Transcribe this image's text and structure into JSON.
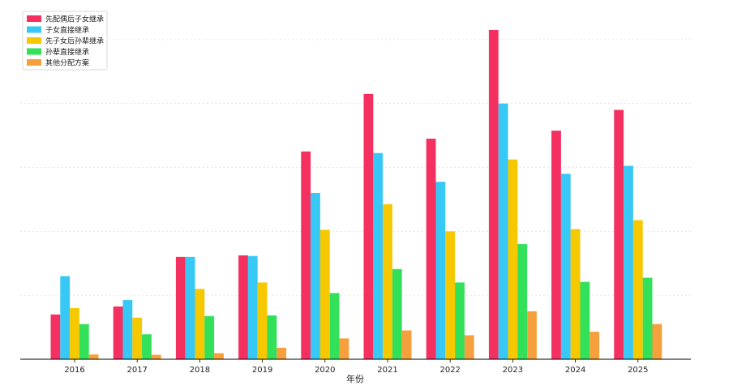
{
  "chart_data": {
    "type": "bar",
    "title": "",
    "xlabel": "年份",
    "ylabel": "",
    "categories": [
      "2016",
      "2017",
      "2018",
      "2019",
      "2020",
      "2021",
      "2022",
      "2023",
      "2024",
      "2025"
    ],
    "ylim": [
      0,
      100
    ],
    "grid": "horizontal-dotted",
    "legend_position": "top-left",
    "series": [
      {
        "name": "先配偶后子女继承",
        "color": "#f33060",
        "values": [
          14,
          16.5,
          32,
          32.5,
          65,
          83,
          69,
          103,
          71.5,
          78
        ]
      },
      {
        "name": "子女直接继承",
        "color": "#38c8f5",
        "values": [
          26,
          18.5,
          32,
          32.3,
          52,
          64.5,
          55.5,
          80,
          58,
          60.5
        ]
      },
      {
        "name": "先子女后孙辈继承",
        "color": "#f5c800",
        "values": [
          16,
          13,
          22,
          24,
          40.5,
          48.5,
          40,
          62.5,
          40.7,
          43.5
        ]
      },
      {
        "name": "孙辈直接继承",
        "color": "#33e05a",
        "values": [
          11,
          7.8,
          13.5,
          13.7,
          20.7,
          28.2,
          24,
          36,
          24.2,
          25.5
        ]
      },
      {
        "name": "其他分配方案",
        "color": "#f5a03c",
        "values": [
          1.5,
          1.4,
          1.9,
          3.6,
          6.5,
          9,
          7.5,
          15,
          8.6,
          11
        ]
      }
    ]
  }
}
